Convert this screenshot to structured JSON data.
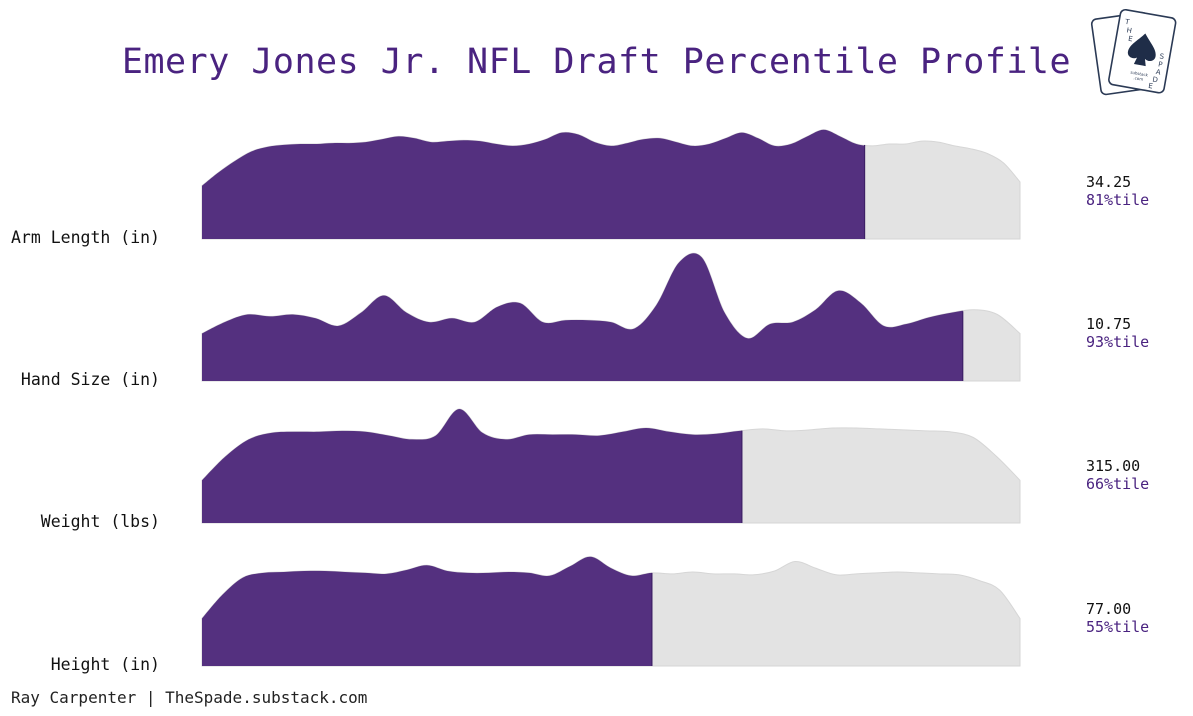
{
  "title": "Emery Jones Jr. NFL Draft Percentile Profile",
  "credit": "Ray Carpenter | TheSpade.substack.com",
  "colors": {
    "accent": "#54307f",
    "inactive": "#e3e3e3",
    "title": "#4a2380"
  },
  "logo": {
    "icon": "spade-playing-cards-logo",
    "text": "THE SPADE substack.com"
  },
  "chart_data": {
    "type": "area",
    "description_type": "percentile density ridgeline",
    "rows": [
      {
        "label": "Arm Length (in)",
        "value": "34.25",
        "percentile_label": "81%tile",
        "percentile": 81,
        "density": [
          0.56,
          0.7,
          0.82,
          0.92,
          0.97,
          0.99,
          1.0,
          1.0,
          1.01,
          1.01,
          1.02,
          1.05,
          1.08,
          1.06,
          1.02,
          1.03,
          1.04,
          1.03,
          1.0,
          0.98,
          1.0,
          1.05,
          1.12,
          1.1,
          1.02,
          0.98,
          1.01,
          1.05,
          1.06,
          1.02,
          0.98,
          1.0,
          1.06,
          1.12,
          1.06,
          0.98,
          1.0,
          1.08,
          1.15,
          1.08,
          1.0,
          0.98,
          1.0,
          1.0,
          1.03,
          1.02,
          0.98,
          0.95,
          0.9,
          0.8,
          0.6
        ]
      },
      {
        "label": "Hand Size (in)",
        "value": "10.75",
        "percentile_label": "93%tile",
        "percentile": 93,
        "density": [
          0.5,
          0.62,
          0.7,
          0.68,
          0.7,
          0.66,
          0.58,
          0.72,
          0.9,
          0.72,
          0.62,
          0.66,
          0.62,
          0.78,
          0.82,
          0.62,
          0.64,
          0.64,
          0.62,
          0.55,
          0.8,
          1.25,
          1.3,
          0.72,
          0.45,
          0.6,
          0.62,
          0.75,
          0.95,
          0.82,
          0.58,
          0.6,
          0.67,
          0.72,
          0.75,
          0.7,
          0.5
        ]
      },
      {
        "label": "Weight (lbs)",
        "value": "315.00",
        "percentile_label": "66%tile",
        "percentile": 66,
        "density": [
          0.45,
          0.7,
          0.88,
          0.95,
          0.96,
          0.96,
          0.97,
          0.96,
          0.92,
          0.88,
          0.92,
          1.2,
          0.95,
          0.88,
          0.93,
          0.93,
          0.93,
          0.92,
          0.96,
          1.0,
          0.96,
          0.93,
          0.94,
          0.97,
          0.99,
          0.97,
          0.98,
          1.0,
          1.0,
          0.99,
          0.98,
          0.97,
          0.96,
          0.9,
          0.7,
          0.45
        ]
      },
      {
        "label": "Height (in)",
        "value": "77.00",
        "percentile_label": "55%tile",
        "percentile": 55,
        "density": [
          0.5,
          0.75,
          0.93,
          0.98,
          0.99,
          1.0,
          1.0,
          0.99,
          0.98,
          0.97,
          1.01,
          1.06,
          1.0,
          0.98,
          0.98,
          0.99,
          0.98,
          0.95,
          1.05,
          1.15,
          1.03,
          0.95,
          0.98,
          0.97,
          0.99,
          0.97,
          0.97,
          0.96,
          1.0,
          1.1,
          1.03,
          0.96,
          0.97,
          0.98,
          0.99,
          0.98,
          0.97,
          0.96,
          0.9,
          0.8,
          0.5
        ]
      }
    ]
  }
}
